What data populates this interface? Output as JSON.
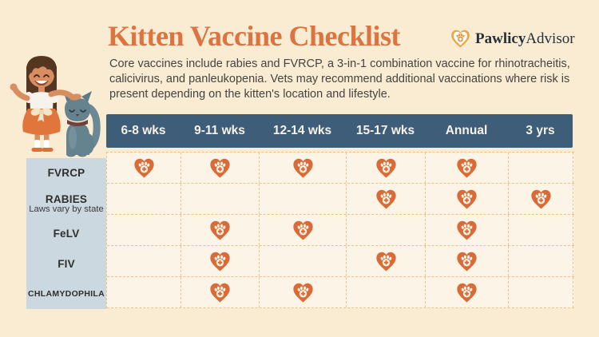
{
  "header": {
    "title": "Kitten Vaccine Checklist",
    "description": "Core vaccines include rabies and FVRCP, a 3-in-1 combination vaccine for rhinotracheitis, calicivirus, and panleukopenia. Vets may recommend additional vaccinations where risk is present depending on the kitten's location and lifestyle."
  },
  "logo": {
    "icon": "heart-paw-icon",
    "name_bold": "Pawlicy",
    "name_regular": "Advisor"
  },
  "chart_data": {
    "type": "table",
    "title": "Kitten Vaccine Checklist",
    "columns": [
      "6-8 wks",
      "9-11 wks",
      "12-14 wks",
      "15-17 wks",
      "Annual",
      "3 yrs"
    ],
    "check_icon": "heart-paw-icon",
    "rows": [
      {
        "label": "FVRCP",
        "sublabel": "",
        "doses": [
          true,
          true,
          true,
          true,
          true,
          false
        ]
      },
      {
        "label": "RABIES",
        "sublabel": "Laws vary by state",
        "doses": [
          false,
          false,
          false,
          true,
          true,
          true
        ]
      },
      {
        "label": "FeLV",
        "sublabel": "",
        "doses": [
          false,
          true,
          true,
          false,
          true,
          false
        ]
      },
      {
        "label": "FIV",
        "sublabel": "",
        "doses": [
          false,
          true,
          false,
          true,
          true,
          false
        ]
      },
      {
        "label": "CHLAMYDOPHILA",
        "sublabel": "",
        "doses": [
          false,
          true,
          true,
          false,
          true,
          false
        ]
      }
    ]
  },
  "colors": {
    "background": "#faecd2",
    "cell_background": "#fcf4e6",
    "header_bar": "#3e5d79",
    "label_column": "#ccd8df",
    "accent_orange": "#d86b38",
    "title_orange": "#db7440",
    "grid_line": "#f0c189",
    "logo_gold": "#efa53f"
  }
}
